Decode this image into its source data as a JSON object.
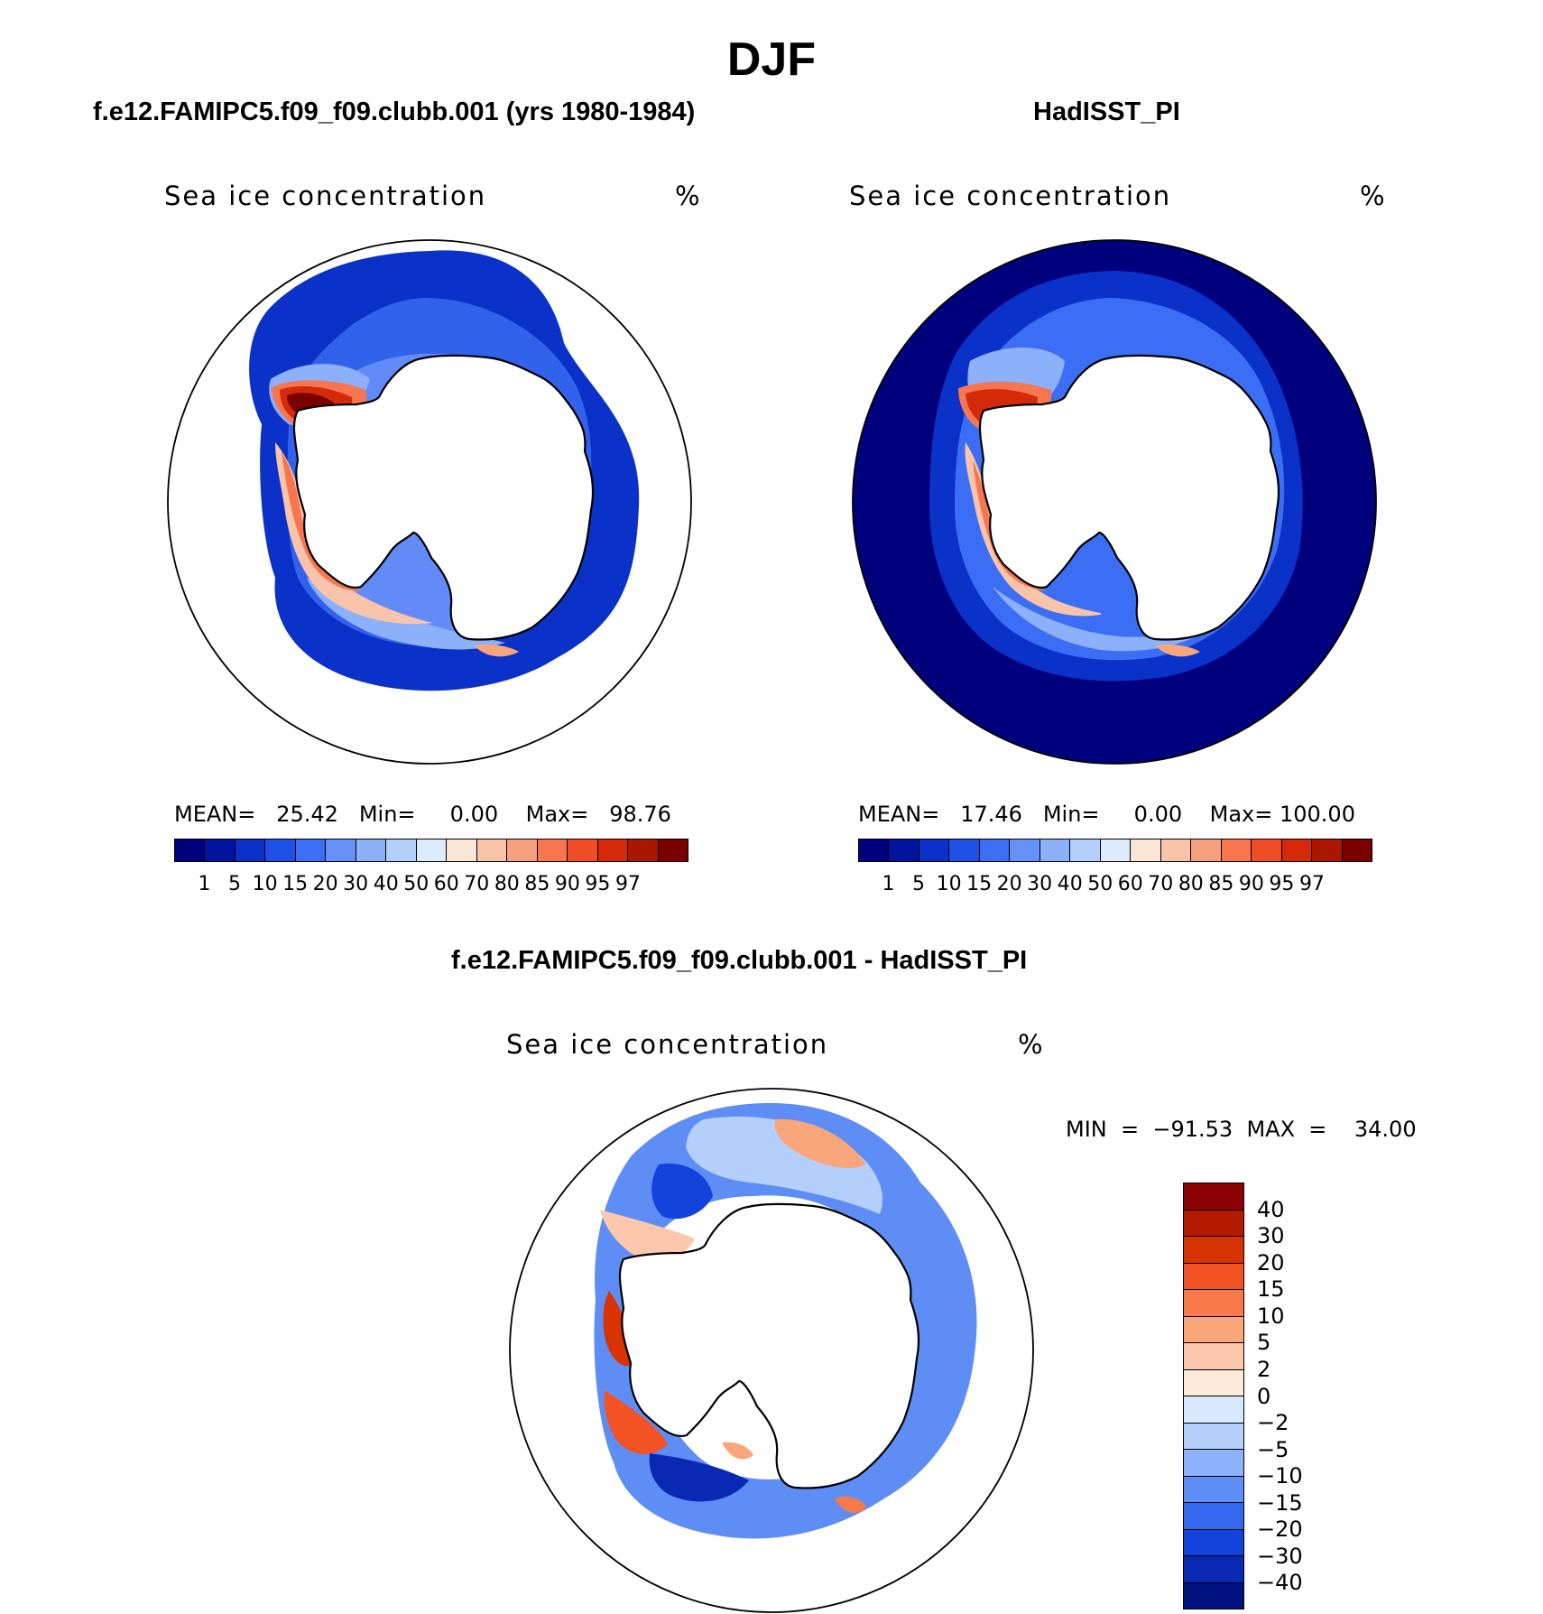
{
  "figure": {
    "season": "DJF",
    "variable": "Sea ice concentration",
    "units": "%"
  },
  "panels": {
    "model": {
      "title": "f.e12.FAMIPC5.f09_f09.clubb.001 (yrs 1980-1984)",
      "subtitle": "Sea ice concentration",
      "units": "%",
      "stats": "MEAN=   25.42   Min=     0.00    Max=   98.76"
    },
    "obs": {
      "title": "HadISST_PI",
      "subtitle": "Sea ice concentration",
      "units": "%",
      "stats": "MEAN=   17.46   Min=     0.00    Max= 100.00"
    },
    "diff": {
      "title": "f.e12.FAMIPC5.f09_f09.clubb.001 - HadISST_PI",
      "subtitle": "Sea ice concentration",
      "units": "%",
      "stats": "MIN  =  −91.53  MAX  =    34.00"
    }
  },
  "colorbars": {
    "main": {
      "levels": [
        "1",
        "5",
        "10",
        "15",
        "20",
        "30",
        "40",
        "50",
        "60",
        "70",
        "80",
        "85",
        "90",
        "95",
        "97"
      ],
      "colors": [
        "#00007f",
        "#0014a0",
        "#0a32c8",
        "#1e50e6",
        "#3c6ef5",
        "#6490f7",
        "#8cb0fa",
        "#b4cffc",
        "#dcebfd",
        "#fbe5d6",
        "#f9c4aa",
        "#f7a07e",
        "#f77650",
        "#f04c26",
        "#d42a0a",
        "#aa1600",
        "#7a0000"
      ]
    },
    "diff": {
      "levels": [
        "40",
        "30",
        "20",
        "15",
        "10",
        "5",
        "2",
        "0",
        "−2",
        "−5",
        "−10",
        "−15",
        "−20",
        "−30",
        "−40"
      ],
      "colors": [
        "#8b0000",
        "#b31b00",
        "#d93300",
        "#f25224",
        "#f87a4a",
        "#f9a67a",
        "#fbc8ad",
        "#fdeadb",
        "#d7e8fd",
        "#b5cffc",
        "#8db1fa",
        "#5f8df6",
        "#3568f1",
        "#1442dd",
        "#0928b3",
        "#00127f"
      ]
    }
  },
  "map_data": {
    "projection": "south-polar-stereographic",
    "region": "Antarctica / Southern Ocean",
    "panels": [
      "model climatology",
      "observations (HadISST_PI)",
      "difference (model - obs)"
    ]
  }
}
